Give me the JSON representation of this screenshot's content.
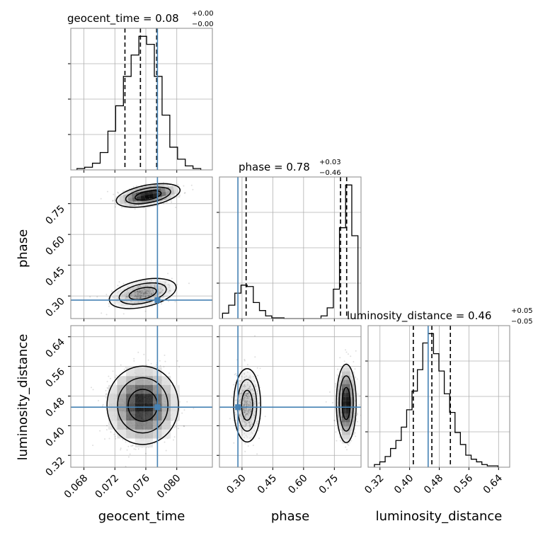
{
  "chart_data": {
    "type": "corner",
    "parameters": [
      "geocent_time",
      "phase",
      "luminosity_distance"
    ],
    "axis_labels": {
      "geocent_time": "geocent_time",
      "phase": "phase",
      "luminosity_distance": "luminosity_distance"
    },
    "ranges": {
      "geocent_time": [
        0.0663,
        0.0846
      ],
      "phase": [
        0.19,
        0.88
      ],
      "luminosity_distance": [
        0.288,
        0.67
      ]
    },
    "ticks": {
      "geocent_time": [
        0.068,
        0.072,
        0.076,
        0.08
      ],
      "phase": [
        0.3,
        0.45,
        0.6,
        0.75
      ],
      "luminosity_distance": [
        0.32,
        0.4,
        0.48,
        0.56,
        0.64
      ]
    },
    "tick_labels": {
      "geocent_time": [
        "0.068",
        "0.072",
        "0.076",
        "0.080"
      ],
      "phase": [
        "0.30",
        "0.45",
        "0.60",
        "0.75"
      ],
      "luminosity_distance": [
        "0.32",
        "0.40",
        "0.48",
        "0.56",
        "0.64"
      ]
    },
    "titles": {
      "geocent_time": {
        "text": "geocent_time = 0.08",
        "upper": "+0.00",
        "lower": "−0.00"
      },
      "phase": {
        "text": "phase = 0.78",
        "upper": "+0.03",
        "lower": "−0.46"
      },
      "luminosity_distance": {
        "text": "luminosity_distance = 0.46",
        "upper": "+0.05",
        "lower": "−0.05"
      }
    },
    "truths": {
      "geocent_time": 0.0775,
      "phase": 0.28,
      "luminosity_distance": 0.45
    },
    "quantiles": {
      "geocent_time": [
        0.0733,
        0.0753,
        0.0774
      ],
      "phase": [
        0.32,
        0.78,
        0.81
      ],
      "luminosity_distance": [
        0.41,
        0.46,
        0.51
      ]
    },
    "histograms": {
      "geocent_time": {
        "bin_edges": [
          0.0671,
          0.0681,
          0.0691,
          0.0701,
          0.0711,
          0.0721,
          0.0731,
          0.0741,
          0.0751,
          0.0761,
          0.0771,
          0.0781,
          0.0791,
          0.0801,
          0.0811,
          0.0821,
          0.0831
        ],
        "counts": [
          1,
          2,
          5,
          13,
          29,
          48,
          70,
          86,
          100,
          94,
          70,
          41,
          17,
          8,
          3,
          1
        ]
      },
      "phase": {
        "bin_edges": [
          0.205,
          0.235,
          0.265,
          0.295,
          0.325,
          0.355,
          0.385,
          0.415,
          0.445,
          0.475,
          0.505,
          0.535,
          0.565,
          0.595,
          0.625,
          0.655,
          0.685,
          0.715,
          0.745,
          0.775,
          0.805,
          0.835,
          0.865
        ],
        "counts": [
          4,
          10,
          19,
          25,
          24,
          12,
          6,
          2,
          0.5,
          0.5,
          0,
          0,
          0,
          0,
          0,
          0,
          2,
          8,
          22,
          68,
          100,
          62
        ]
      },
      "luminosity_distance": {
        "bin_edges": [
          0.305,
          0.3195,
          0.334,
          0.3485,
          0.363,
          0.3775,
          0.392,
          0.4065,
          0.421,
          0.4355,
          0.45,
          0.4645,
          0.479,
          0.4935,
          0.508,
          0.5225,
          0.537,
          0.5515,
          0.566,
          0.5805,
          0.595,
          0.6095,
          0.624,
          0.6385
        ],
        "counts": [
          2,
          4,
          8,
          14,
          20,
          30,
          43,
          57,
          73,
          93,
          100,
          85,
          72,
          55,
          41,
          26,
          17,
          9,
          6,
          4,
          2,
          1,
          1
        ]
      }
    },
    "colors": {
      "truth": "#4682b4",
      "contour": "#000000",
      "grid": "#b0b0b0",
      "frame": "#888888"
    },
    "grid": true
  }
}
